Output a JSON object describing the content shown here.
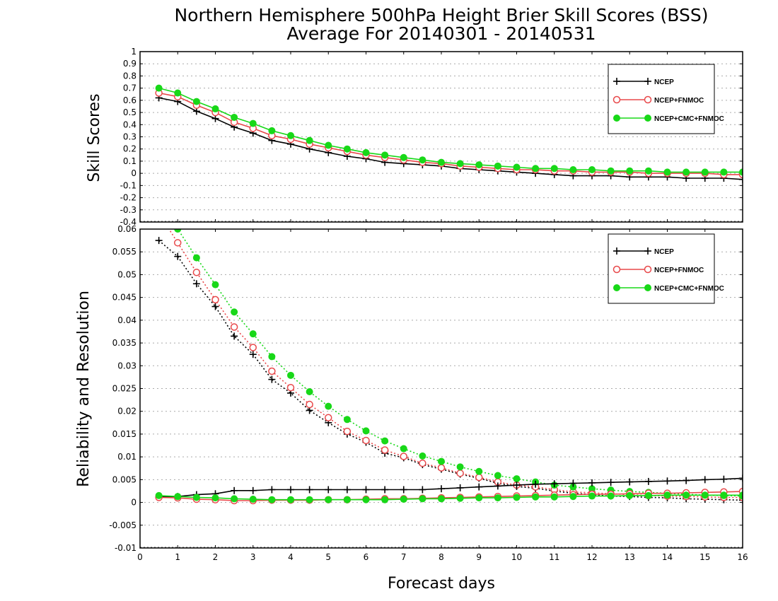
{
  "title_line1": "Northern Hemisphere 500hPa Height Brier Skill Scores (BSS)",
  "title_line2": "Average For 20140301 - 20140531",
  "xlabel": "Forecast days",
  "colors": {
    "NCEP": "#000000",
    "NCEP+FNMOC": "#e8484a",
    "NCEP+CMC+FNMOC": "#18d818"
  },
  "chart_data": [
    {
      "type": "line",
      "panel": "top",
      "ylabel": "Skill Scores",
      "xlim": [
        0,
        16
      ],
      "ylim": [
        -0.4,
        1
      ],
      "yticks": [
        "-0.4",
        "-0.3",
        "-0.2",
        "-0.1",
        "0",
        "0.1",
        "0.2",
        "0.3",
        "0.4",
        "0.5",
        "0.6",
        "0.7",
        "0.8",
        "0.9",
        "1"
      ],
      "xticks": [
        "0",
        "1",
        "2",
        "3",
        "4",
        "5",
        "6",
        "7",
        "8",
        "9",
        "10",
        "11",
        "12",
        "13",
        "14",
        "15",
        "16"
      ],
      "grid": true,
      "legend": "top-right",
      "x": [
        0.5,
        1,
        1.5,
        2,
        2.5,
        3,
        3.5,
        4,
        4.5,
        5,
        5.5,
        6,
        6.5,
        7,
        7.5,
        8,
        8.5,
        9,
        9.5,
        10,
        10.5,
        11,
        11.5,
        12,
        12.5,
        13,
        13.5,
        14,
        14.5,
        15,
        15.5,
        16
      ],
      "series": [
        {
          "name": "NCEP",
          "marker": "plus",
          "values": [
            0.62,
            0.59,
            0.51,
            0.45,
            0.38,
            0.33,
            0.27,
            0.24,
            0.2,
            0.17,
            0.14,
            0.12,
            0.09,
            0.08,
            0.07,
            0.06,
            0.04,
            0.03,
            0.02,
            0.01,
            0.0,
            -0.01,
            -0.02,
            -0.02,
            -0.02,
            -0.03,
            -0.03,
            -0.03,
            -0.04,
            -0.04,
            -0.04,
            -0.05
          ]
        },
        {
          "name": "NCEP+FNMOC",
          "marker": "circle-open",
          "values": [
            0.66,
            0.63,
            0.56,
            0.5,
            0.42,
            0.37,
            0.31,
            0.28,
            0.24,
            0.21,
            0.18,
            0.15,
            0.13,
            0.11,
            0.09,
            0.08,
            0.06,
            0.05,
            0.04,
            0.03,
            0.03,
            0.02,
            0.02,
            0.01,
            0.01,
            0.01,
            0.0,
            0.0,
            0.0,
            0.0,
            -0.01,
            -0.01
          ]
        },
        {
          "name": "NCEP+CMC+FNMOC",
          "marker": "circle-filled",
          "values": [
            0.7,
            0.66,
            0.59,
            0.53,
            0.46,
            0.41,
            0.35,
            0.31,
            0.27,
            0.23,
            0.2,
            0.17,
            0.15,
            0.13,
            0.11,
            0.09,
            0.08,
            0.07,
            0.06,
            0.05,
            0.04,
            0.04,
            0.03,
            0.03,
            0.02,
            0.02,
            0.02,
            0.01,
            0.01,
            0.01,
            0.01,
            0.01
          ]
        }
      ]
    },
    {
      "type": "line",
      "panel": "bottom",
      "ylabel": "Reliability and Resolution",
      "xlim": [
        0,
        16
      ],
      "ylim": [
        -0.01,
        0.06
      ],
      "yticks": [
        "-0.01",
        "-0.005",
        "0",
        "0.005",
        "0.01",
        "0.015",
        "0.02",
        "0.025",
        "0.03",
        "0.035",
        "0.04",
        "0.045",
        "0.05",
        "0.055",
        "0.06"
      ],
      "xticks": [
        "0",
        "1",
        "2",
        "3",
        "4",
        "5",
        "6",
        "7",
        "8",
        "9",
        "10",
        "11",
        "12",
        "13",
        "14",
        "15",
        "16"
      ],
      "grid": true,
      "legend": "top-right",
      "x": [
        0.5,
        1,
        1.5,
        2,
        2.5,
        3,
        3.5,
        4,
        4.5,
        5,
        5.5,
        6,
        6.5,
        7,
        7.5,
        8,
        8.5,
        9,
        9.5,
        10,
        10.5,
        11,
        11.5,
        12,
        12.5,
        13,
        13.5,
        14,
        14.5,
        15,
        15.5,
        16
      ],
      "series": [
        {
          "name": "NCEP",
          "marker": "plus",
          "line": "dotted",
          "values": [
            0.0575,
            0.054,
            0.048,
            0.043,
            0.0365,
            0.0325,
            0.027,
            0.024,
            0.0202,
            0.0175,
            0.015,
            0.0132,
            0.0108,
            0.0098,
            0.0083,
            0.0073,
            0.0062,
            0.0053,
            0.0042,
            0.0035,
            0.0031,
            0.0025,
            0.002,
            0.0017,
            0.0014,
            0.0013,
            0.0011,
            0.001,
            0.0008,
            0.0007,
            0.0006,
            0.0005
          ]
        },
        {
          "name": "NCEP+FNMOC",
          "marker": "circle-open",
          "line": "dotted",
          "values": [
            0.0635,
            0.057,
            0.0505,
            0.0445,
            0.0385,
            0.034,
            0.0288,
            0.0252,
            0.0215,
            0.0186,
            0.0156,
            0.0136,
            0.0115,
            0.0101,
            0.0086,
            0.0076,
            0.0064,
            0.0055,
            0.0045,
            0.0038,
            0.0034,
            0.0028,
            0.0023,
            0.0021,
            0.0019,
            0.0017,
            0.0015,
            0.0014,
            0.0013,
            0.0012,
            0.0011,
            0.0011
          ]
        },
        {
          "name": "NCEP+CMC+FNMOC",
          "marker": "circle-filled",
          "line": "dotted",
          "values": [
            0.066,
            0.06,
            0.0537,
            0.0478,
            0.0418,
            0.037,
            0.032,
            0.0279,
            0.0243,
            0.0211,
            0.0182,
            0.0157,
            0.0135,
            0.0118,
            0.0102,
            0.009,
            0.0078,
            0.0068,
            0.0059,
            0.0052,
            0.0045,
            0.0038,
            0.0034,
            0.003,
            0.0027,
            0.0024,
            0.0022,
            0.002,
            0.0018,
            0.0016,
            0.0015,
            0.0014
          ]
        },
        {
          "name": "NCEP",
          "marker": "plus",
          "line": "solid",
          "values": [
            0.0012,
            0.0013,
            0.0017,
            0.0019,
            0.0026,
            0.0026,
            0.0028,
            0.0028,
            0.0028,
            0.0028,
            0.0028,
            0.0028,
            0.0028,
            0.0028,
            0.0028,
            0.003,
            0.0032,
            0.0034,
            0.0036,
            0.0038,
            0.004,
            0.0041,
            0.0042,
            0.0043,
            0.0044,
            0.0045,
            0.0046,
            0.0047,
            0.0048,
            0.005,
            0.0051,
            0.0053
          ]
        },
        {
          "name": "NCEP+FNMOC",
          "marker": "circle-open",
          "line": "solid",
          "values": [
            0.0011,
            0.001,
            0.0007,
            0.0006,
            0.0004,
            0.0004,
            0.0005,
            0.0005,
            0.0005,
            0.0006,
            0.0006,
            0.0007,
            0.0008,
            0.0008,
            0.0009,
            0.001,
            0.0011,
            0.0012,
            0.0013,
            0.0014,
            0.0015,
            0.0016,
            0.0017,
            0.0018,
            0.0018,
            0.0019,
            0.002,
            0.002,
            0.0021,
            0.0022,
            0.0023,
            0.0024
          ]
        },
        {
          "name": "NCEP+CMC+FNMOC",
          "marker": "circle-filled",
          "line": "solid",
          "values": [
            0.0015,
            0.0013,
            0.0011,
            0.001,
            0.0008,
            0.0007,
            0.0006,
            0.0006,
            0.0006,
            0.0006,
            0.0006,
            0.0006,
            0.0006,
            0.0007,
            0.0008,
            0.0008,
            0.0009,
            0.001,
            0.001,
            0.0011,
            0.0012,
            0.0012,
            0.0013,
            0.0014,
            0.0014,
            0.0015,
            0.0015,
            0.0016,
            0.0016,
            0.0016,
            0.0016,
            0.0016
          ]
        }
      ]
    }
  ]
}
